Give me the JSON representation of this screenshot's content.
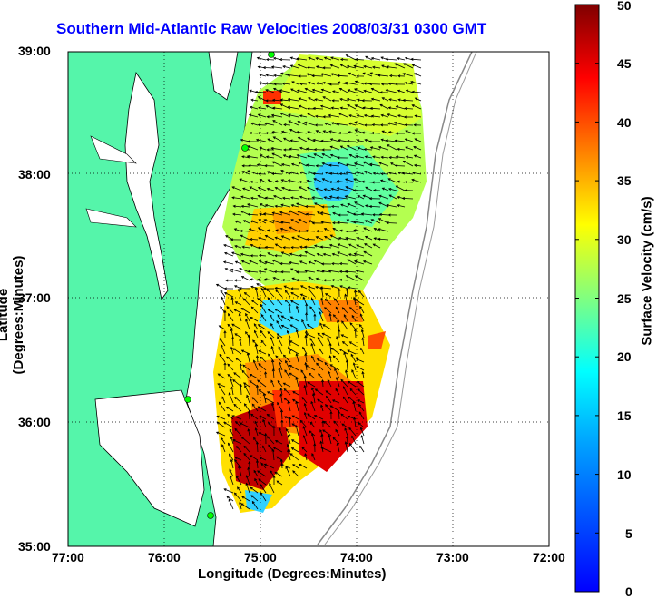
{
  "title": "Southern Mid-Atlantic Raw Velocities 2008/03/31 0300 GMT",
  "x_axis": {
    "label": "Longitude (Degrees:Minutes)",
    "ticks": [
      "77:00",
      "76:00",
      "75:00",
      "74:00",
      "73:00",
      "72:00"
    ]
  },
  "y_axis": {
    "label": "Latitude (Degrees:Minutes)",
    "ticks": [
      "39:00",
      "38:00",
      "37:00",
      "36:00",
      "35:00"
    ]
  },
  "colorbar": {
    "label": "Surface Velocity (cm/s)",
    "ticks": [
      "50",
      "45",
      "40",
      "35",
      "30",
      "25",
      "20",
      "15",
      "10",
      "5",
      "0"
    ],
    "min": 0,
    "max": 50,
    "colormap": "jet"
  },
  "colors": {
    "title": "#0000ff",
    "land": "#55f5aa",
    "grid": "#000000"
  },
  "map_extent": {
    "lon": [
      -77,
      -72
    ],
    "lat": [
      35,
      39
    ]
  },
  "grid": "dotted",
  "vectors": "black arrows"
}
